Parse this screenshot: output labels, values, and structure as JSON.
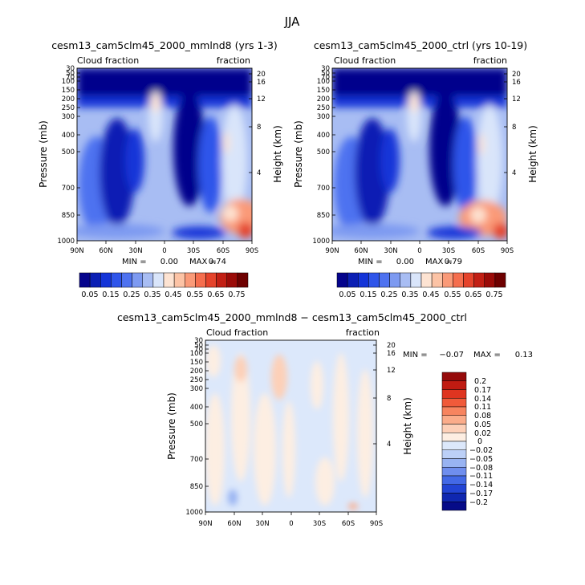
{
  "figure": {
    "season_title": "JJA"
  },
  "chart_data": [
    {
      "type": "heatmap",
      "title": "cesm13_cam5clm45_2000_mmlnd8 (yrs 1-3)",
      "corner_left": "Cloud fraction",
      "corner_right": "fraction",
      "ylabel": "Pressure (mb)",
      "ylabel_right": "Height (km)",
      "x_tick_labels": [
        "90N",
        "60N",
        "30N",
        "0",
        "30S",
        "60S",
        "90S"
      ],
      "x_ticks": [
        90,
        60,
        30,
        0,
        -30,
        -60,
        -90
      ],
      "xlim": [
        90,
        -90
      ],
      "y_tick_labels": [
        "30",
        "50",
        "70",
        "100",
        "150",
        "200",
        "250",
        "300",
        "400",
        "500",
        "700",
        "850",
        "1000"
      ],
      "y_ticks": [
        30,
        50,
        70,
        100,
        150,
        200,
        250,
        300,
        400,
        500,
        700,
        850,
        1000
      ],
      "ylim": [
        1000,
        30
      ],
      "y_scale": "log",
      "right_tick_labels": [
        "20",
        "16",
        "12",
        "8",
        "4"
      ],
      "right_ticks_km": [
        20,
        16,
        12,
        8,
        4
      ],
      "min_label": "MIN =",
      "min_value": "0.00",
      "max_label": "MAX =",
      "max_value": "0.74",
      "colorbar_labels": [
        "0.05",
        "0.15",
        "0.25",
        "0.35",
        "0.45",
        "0.55",
        "0.65",
        "0.75"
      ],
      "colorbar_levels": [
        0.05,
        0.1,
        0.15,
        0.2,
        0.25,
        0.3,
        0.35,
        0.4,
        0.45,
        0.5,
        0.55,
        0.6,
        0.65,
        0.7,
        0.75
      ],
      "colorbar_colors": [
        "#05048c",
        "#0b1fb4",
        "#1434d8",
        "#2f55ea",
        "#4e72f0",
        "#7d9af1",
        "#a8bdf3",
        "#d9e5fa",
        "#fde3d2",
        "#fcc3a5",
        "#fa9a78",
        "#f56e4e",
        "#e5432b",
        "#c21f14",
        "#9b0b08",
        "#6e0000"
      ],
      "grid": false,
      "legend": "bottom"
    },
    {
      "type": "heatmap",
      "title": "cesm13_cam5clm45_2000_ctrl (yrs 10-19)",
      "corner_left": "Cloud fraction",
      "corner_right": "fraction",
      "ylabel": "Pressure (mb)",
      "ylabel_right": "Height (km)",
      "x_tick_labels": [
        "90N",
        "60N",
        "30N",
        "0",
        "30S",
        "60S",
        "90S"
      ],
      "x_ticks": [
        90,
        60,
        30,
        0,
        -30,
        -60,
        -90
      ],
      "xlim": [
        90,
        -90
      ],
      "y_tick_labels": [
        "30",
        "50",
        "70",
        "100",
        "150",
        "200",
        "250",
        "300",
        "400",
        "500",
        "700",
        "850",
        "1000"
      ],
      "y_ticks": [
        30,
        50,
        70,
        100,
        150,
        200,
        250,
        300,
        400,
        500,
        700,
        850,
        1000
      ],
      "ylim": [
        1000,
        30
      ],
      "y_scale": "log",
      "right_tick_labels": [
        "20",
        "16",
        "12",
        "8",
        "4"
      ],
      "right_ticks_km": [
        20,
        16,
        12,
        8,
        4
      ],
      "min_label": "MIN =",
      "min_value": "0.00",
      "max_label": "MAX =",
      "max_value": "0.79",
      "colorbar_labels": [
        "0.05",
        "0.15",
        "0.25",
        "0.35",
        "0.45",
        "0.55",
        "0.65",
        "0.75"
      ],
      "colorbar_levels": [
        0.05,
        0.1,
        0.15,
        0.2,
        0.25,
        0.3,
        0.35,
        0.4,
        0.45,
        0.5,
        0.55,
        0.6,
        0.65,
        0.7,
        0.75
      ],
      "colorbar_colors": [
        "#05048c",
        "#0b1fb4",
        "#1434d8",
        "#2f55ea",
        "#4e72f0",
        "#7d9af1",
        "#a8bdf3",
        "#d9e5fa",
        "#fde3d2",
        "#fcc3a5",
        "#fa9a78",
        "#f56e4e",
        "#e5432b",
        "#c21f14",
        "#9b0b08",
        "#6e0000"
      ],
      "grid": false,
      "legend": "bottom"
    },
    {
      "type": "heatmap",
      "title": "cesm13_cam5clm45_2000_mmlnd8 − cesm13_cam5clm45_2000_ctrl",
      "corner_left": "Cloud fraction",
      "corner_right": "fraction",
      "ylabel": "Pressure (mb)",
      "ylabel_right": "Height (km)",
      "x_tick_labels": [
        "90N",
        "60N",
        "30N",
        "0",
        "30S",
        "60S",
        "90S"
      ],
      "x_ticks": [
        90,
        60,
        30,
        0,
        -30,
        -60,
        -90
      ],
      "xlim": [
        90,
        -90
      ],
      "y_tick_labels": [
        "30",
        "50",
        "70",
        "100",
        "150",
        "200",
        "250",
        "300",
        "400",
        "500",
        "700",
        "850",
        "1000"
      ],
      "y_ticks": [
        30,
        50,
        70,
        100,
        150,
        200,
        250,
        300,
        400,
        500,
        700,
        850,
        1000
      ],
      "ylim": [
        1000,
        30
      ],
      "y_scale": "log",
      "right_tick_labels": [
        "20",
        "16",
        "12",
        "8",
        "4"
      ],
      "right_ticks_km": [
        20,
        16,
        12,
        8,
        4
      ],
      "min_label": "MIN =",
      "min_value": "−0.07",
      "max_label": "MAX =",
      "max_value": "0.13",
      "colorbar_labels": [
        "0.2",
        "0.17",
        "0.14",
        "0.11",
        "0.08",
        "0.05",
        "0.02",
        "0",
        "−0.02",
        "−0.05",
        "−0.08",
        "−0.11",
        "−0.14",
        "−0.17",
        "−0.2"
      ],
      "colorbar_colors": [
        "#950a0a",
        "#c01b12",
        "#df3520",
        "#f05a3a",
        "#f7845f",
        "#fbac8a",
        "#fdd0b8",
        "#fdeee2",
        "#dce8fb",
        "#bcd0f7",
        "#98b3f2",
        "#6f8eee",
        "#4369e6",
        "#2244d4",
        "#0f27b0",
        "#060b88"
      ],
      "grid": false,
      "legend": "right"
    }
  ]
}
